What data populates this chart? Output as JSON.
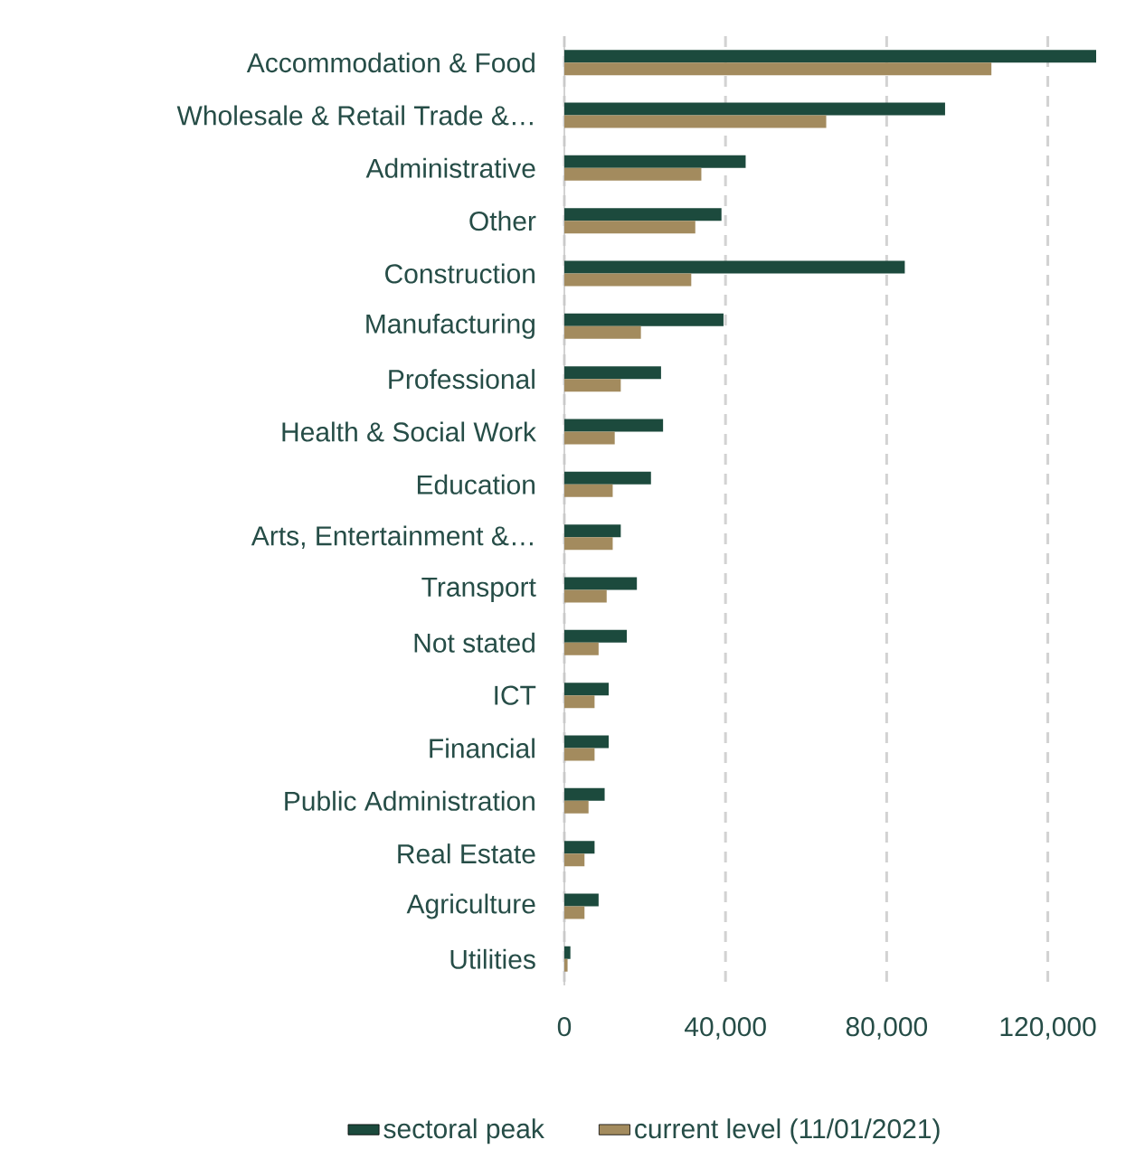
{
  "chart_data": {
    "type": "bar",
    "orientation": "horizontal",
    "categories": [
      "Accommodation & Food",
      "Wholesale & Retail Trade &…",
      "Administrative",
      "Other",
      "Construction",
      "Manufacturing",
      "Professional",
      "Health & Social Work",
      "Education",
      "Arts, Entertainment &…",
      "Transport",
      "Not stated",
      "ICT",
      "Financial",
      "Public Administration",
      "Real Estate",
      "Agriculture",
      "Utilities"
    ],
    "series": [
      {
        "name": "sectoral peak",
        "color": "#1c4a3d",
        "values": [
          132000,
          94500,
          45000,
          39000,
          84500,
          39500,
          24000,
          24500,
          21500,
          14000,
          18000,
          15500,
          11000,
          11000,
          10000,
          7500,
          8500,
          1500
        ]
      },
      {
        "name": "current level (11/01/2021)",
        "color": "#a38b5e",
        "values": [
          106000,
          65000,
          34000,
          32500,
          31500,
          19000,
          14000,
          12500,
          12000,
          12000,
          10500,
          8500,
          7500,
          7500,
          6000,
          5000,
          5000,
          800
        ]
      }
    ],
    "xlim": [
      0,
      132000
    ],
    "xticks": [
      0,
      {
        "value": 40000,
        "label": "40,000"
      },
      {
        "value": 80000,
        "label": "80,000"
      },
      {
        "value": 120000,
        "label": "120,000"
      }
    ],
    "grid": "x",
    "legend": "bottom"
  }
}
